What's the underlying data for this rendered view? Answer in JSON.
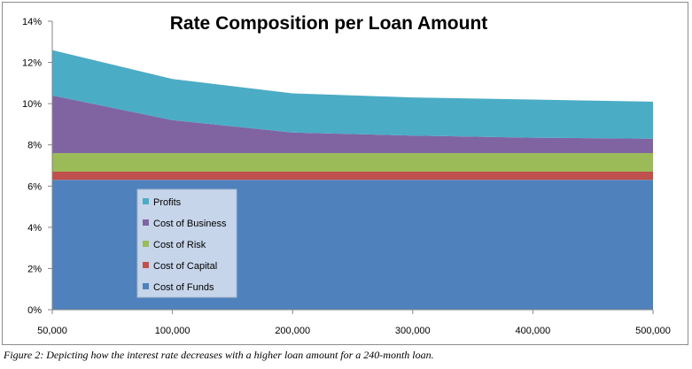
{
  "chart_data": {
    "type": "area",
    "stacked": true,
    "title": "Rate Composition per Loan Amount",
    "xlabel": "",
    "ylabel": "",
    "categories": [
      "50,000",
      "100,000",
      "200,000",
      "300,000",
      "400,000",
      "500,000"
    ],
    "x_values": [
      50000,
      100000,
      200000,
      300000,
      400000,
      500000
    ],
    "ylim": [
      0,
      14
    ],
    "y_unit": "%",
    "y_ticks": [
      "0%",
      "2%",
      "4%",
      "6%",
      "8%",
      "10%",
      "12%",
      "14%"
    ],
    "grid": false,
    "legend_placement": "lower-left",
    "series": [
      {
        "name": "Cost of Funds",
        "color": "#4f81bd",
        "values": [
          6.3,
          6.3,
          6.3,
          6.3,
          6.3,
          6.3
        ]
      },
      {
        "name": "Cost of Capital",
        "color": "#c0504d",
        "values": [
          0.4,
          0.4,
          0.4,
          0.4,
          0.4,
          0.4
        ]
      },
      {
        "name": "Cost of Risk",
        "color": "#9bbb59",
        "values": [
          0.9,
          0.9,
          0.9,
          0.9,
          0.9,
          0.9
        ]
      },
      {
        "name": "Cost of Business",
        "color": "#8064a2",
        "values": [
          2.8,
          1.6,
          1.0,
          0.85,
          0.75,
          0.7
        ]
      },
      {
        "name": "Profits",
        "color": "#4bacc6",
        "values": [
          2.2,
          2.0,
          1.9,
          1.85,
          1.85,
          1.8
        ]
      }
    ],
    "legend_order": [
      "Profits",
      "Cost of Business",
      "Cost of Risk",
      "Cost of Capital",
      "Cost of Funds"
    ]
  },
  "caption": "Figure 2: Depicting how the interest rate decreases with a higher loan amount for a 240-month  loan."
}
